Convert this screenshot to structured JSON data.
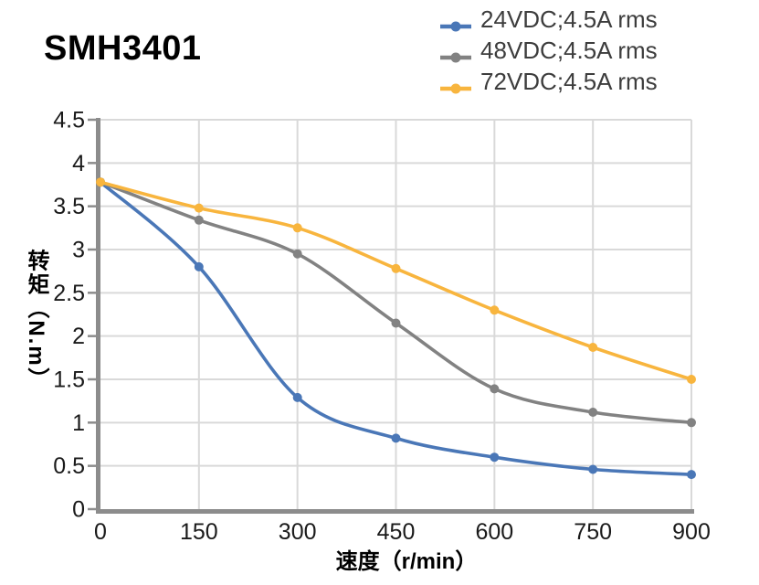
{
  "title": "SMH3401",
  "colors": {
    "grid": "#d9d9d9",
    "axis": "#8c8c8c",
    "tick_text": "#1a1a1a",
    "legend_text": "#3d3d3d",
    "blue": "#4a77b7",
    "gray": "#828282",
    "orange": "#f8b53e"
  },
  "chart_data": {
    "type": "line",
    "title": "SMH3401",
    "xlabel": "速度（r/min）",
    "ylabel": "转矩（N.m）",
    "x": [
      0,
      150,
      300,
      450,
      600,
      750,
      900
    ],
    "xticks": [
      0,
      150,
      300,
      450,
      600,
      750,
      900
    ],
    "yticks": [
      0,
      0.5,
      1,
      1.5,
      2,
      2.5,
      3,
      3.5,
      4,
      4.5
    ],
    "xlim": [
      0,
      900
    ],
    "ylim": [
      0,
      4.5
    ],
    "grid": true,
    "legend_position": "top-right",
    "marker": "circle",
    "smooth": true,
    "series": [
      {
        "name": "24VDC;4.5A rms",
        "color": "#4a77b7",
        "values": [
          3.78,
          2.8,
          1.29,
          0.82,
          0.6,
          0.46,
          0.4
        ]
      },
      {
        "name": "48VDC;4.5A rms",
        "color": "#828282",
        "values": [
          3.78,
          3.34,
          2.95,
          2.15,
          1.39,
          1.12,
          1.0
        ]
      },
      {
        "name": "72VDC;4.5A rms",
        "color": "#f8b53e",
        "values": [
          3.78,
          3.48,
          3.25,
          2.78,
          2.3,
          1.87,
          1.5
        ]
      }
    ]
  }
}
